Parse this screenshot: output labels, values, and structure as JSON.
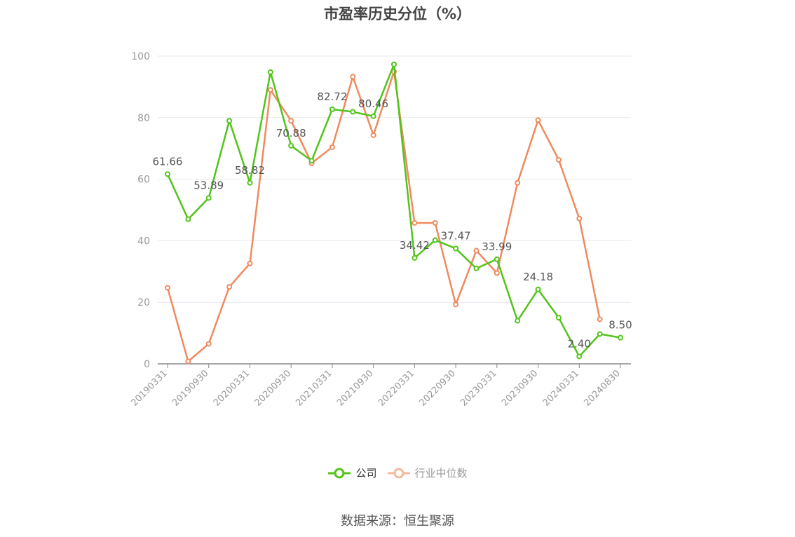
{
  "title": "市盈率历史分位（%）",
  "source": "数据来源：恒生聚源",
  "legend": {
    "company": "公司",
    "industry": "行业中位数"
  },
  "colors": {
    "company": "#52c41a",
    "industry": "#f08a5d",
    "industry_legend": "#f7b99b",
    "axis": "#888888",
    "grid": "#e6e9f0",
    "label": "#999999"
  },
  "chart_data": {
    "type": "line",
    "title": "市盈率历史分位（%）",
    "ylim": [
      0,
      100
    ],
    "yticks": [
      0,
      20,
      40,
      60,
      80,
      100
    ],
    "grid": true,
    "legend_position": "bottom",
    "xtick_labels": [
      "20190331",
      "20190930",
      "20200331",
      "20200930",
      "20210331",
      "20210930",
      "20220331",
      "20220930",
      "20230331",
      "20230930",
      "20240331",
      "20240830"
    ],
    "x": [
      "20190331",
      "20190630",
      "20190930",
      "20191231",
      "20200331",
      "20200630",
      "20200930",
      "20201231",
      "20210331",
      "20210630",
      "20210930",
      "20211231",
      "20220331",
      "20220630",
      "20220930",
      "20221231",
      "20230331",
      "20230630",
      "20230930",
      "20231231",
      "20240331",
      "20240630",
      "20240830"
    ],
    "series": [
      {
        "name": "公司",
        "values": [
          61.66,
          47.0,
          53.89,
          79.0,
          58.82,
          94.8,
          70.88,
          66.0,
          82.72,
          81.9,
          80.46,
          97.3,
          34.42,
          40.2,
          37.47,
          31.0,
          33.99,
          14.0,
          24.18,
          15.0,
          2.4,
          9.7,
          8.5
        ],
        "data_labels": {
          "0": "61.66",
          "2": "53.89",
          "4": "58.82",
          "6": "70.88",
          "8": "82.72",
          "10": "80.46",
          "12": "34.42",
          "14": "37.47",
          "16": "33.99",
          "18": "24.18",
          "20": "2.40",
          "22": "8.50"
        }
      },
      {
        "name": "行业中位数",
        "values": [
          24.7,
          0.8,
          6.5,
          25.0,
          32.6,
          89.0,
          79.0,
          65.2,
          70.4,
          93.3,
          74.3,
          95.0,
          45.8,
          45.8,
          19.3,
          36.8,
          29.5,
          58.8,
          79.2,
          66.3,
          47.2,
          14.5,
          null
        ]
      }
    ]
  }
}
